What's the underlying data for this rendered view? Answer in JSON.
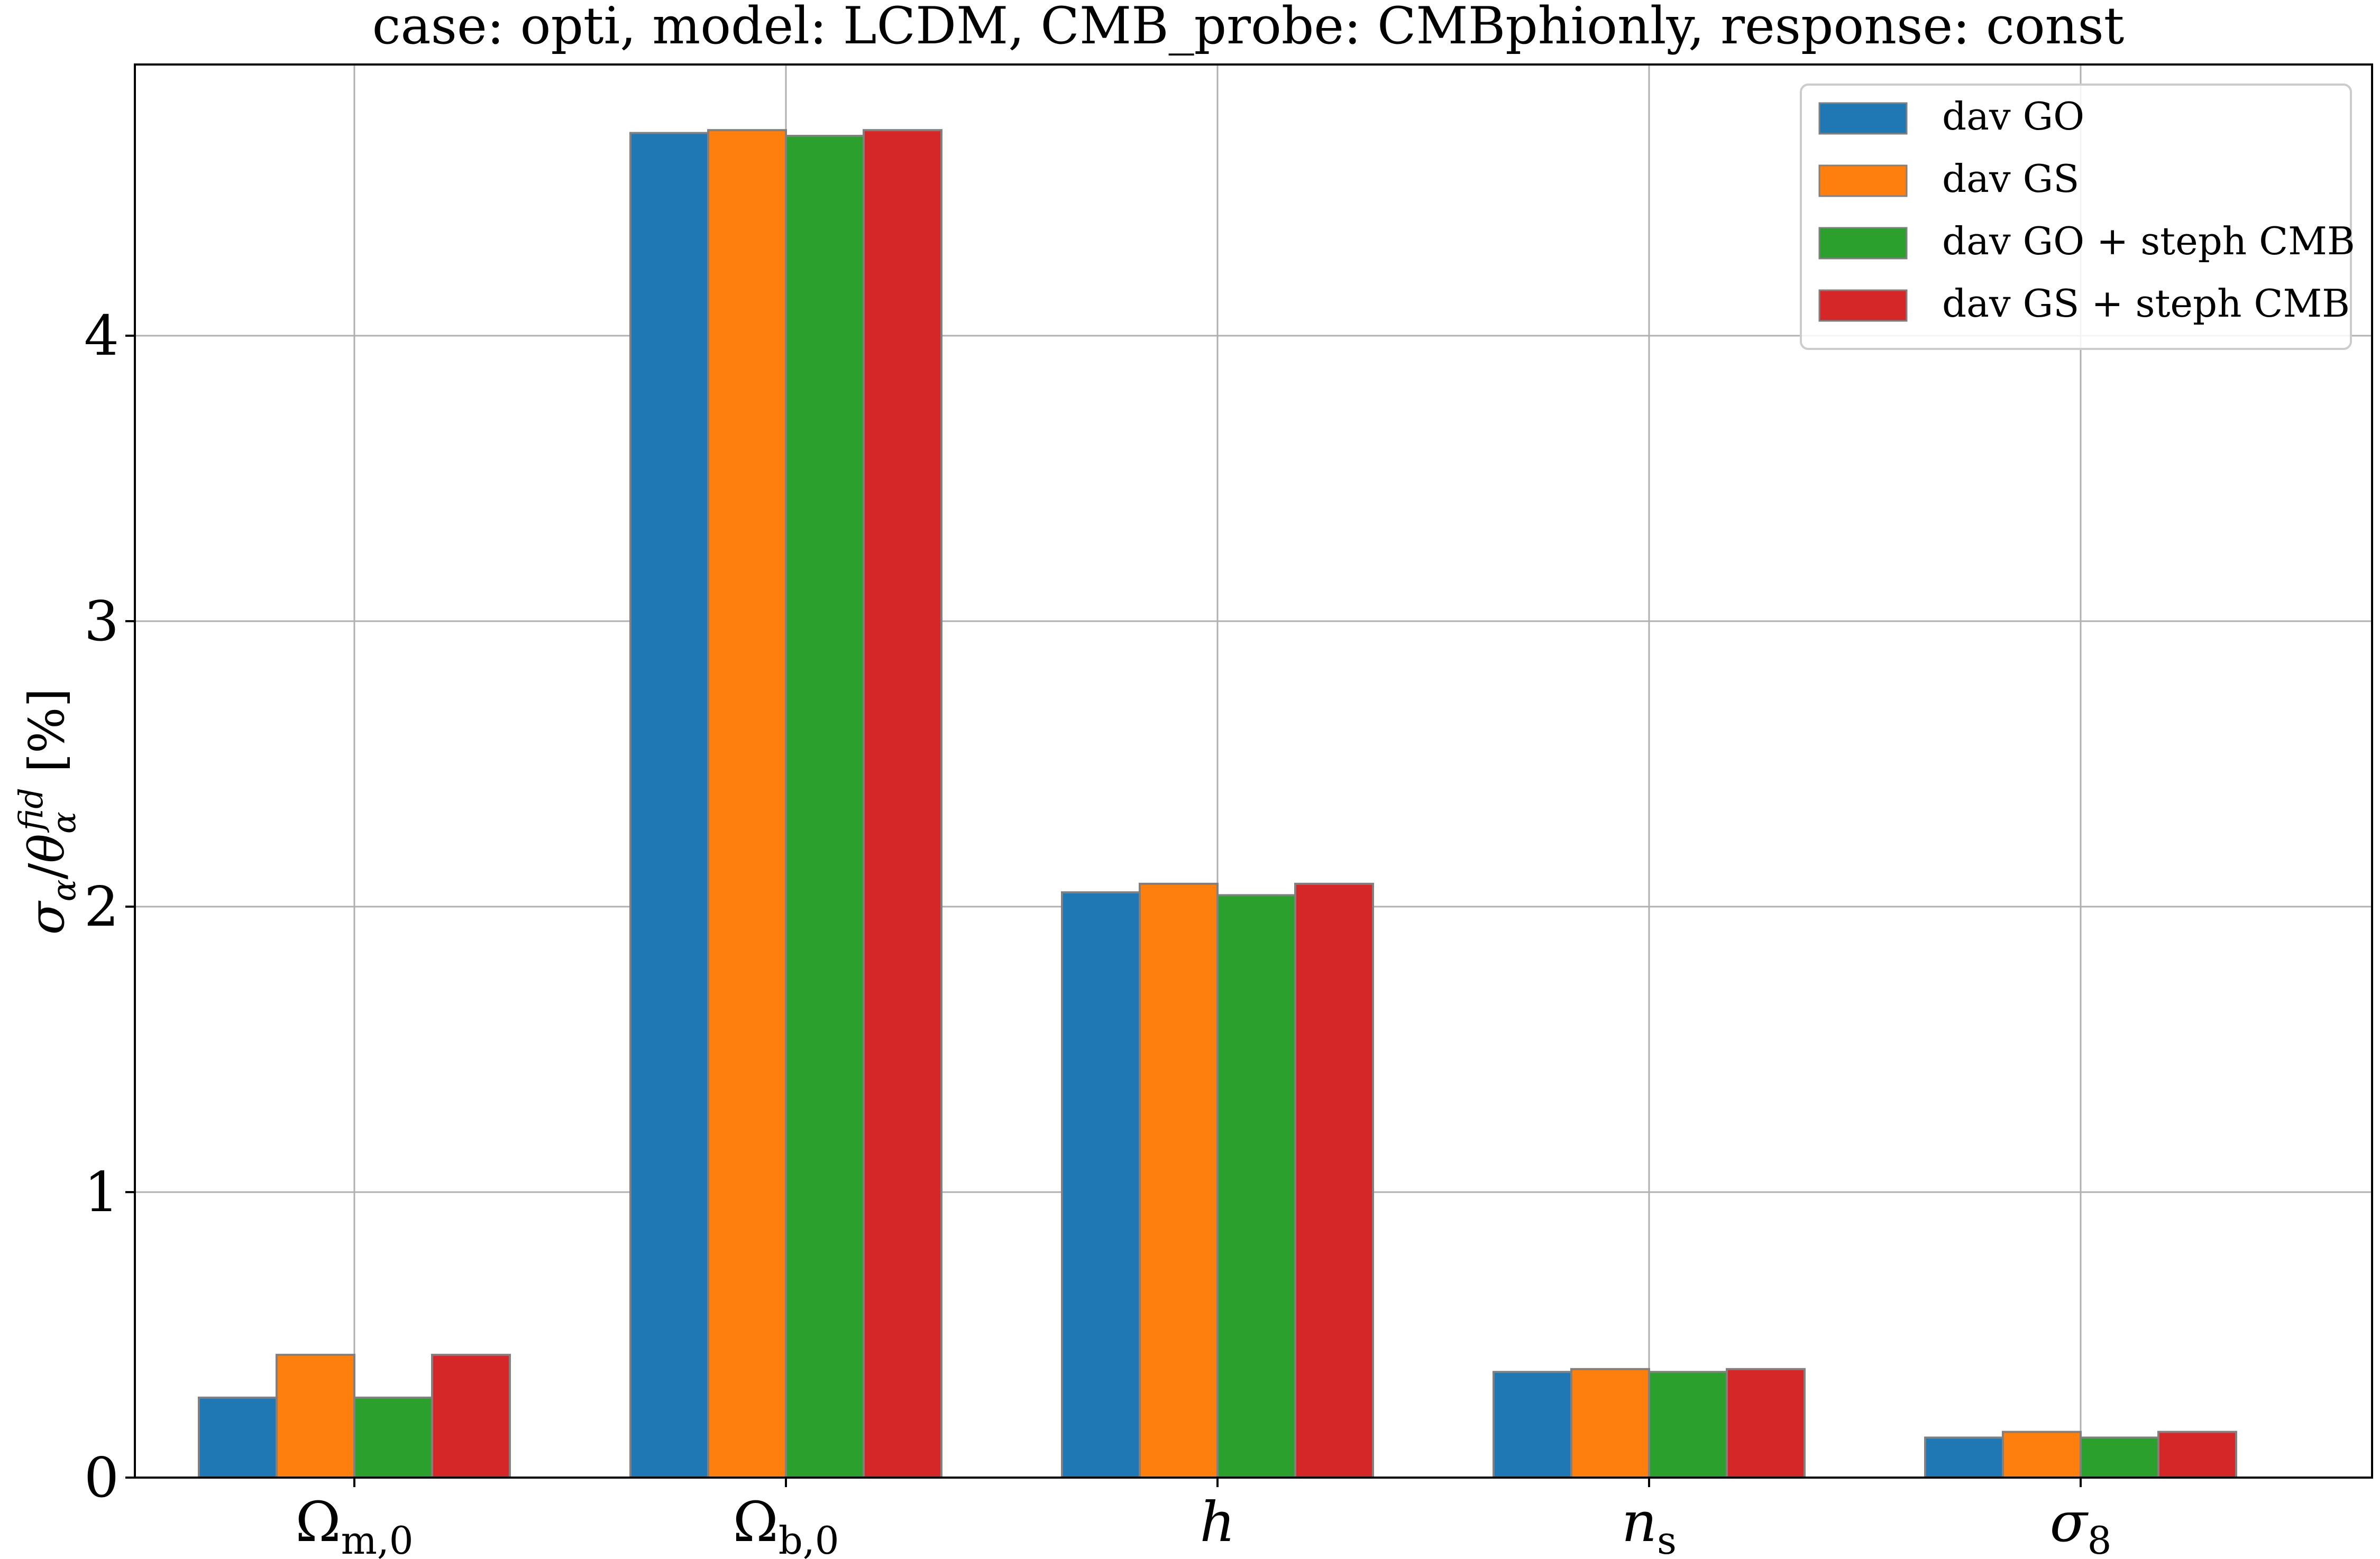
{
  "chart_data": {
    "type": "bar",
    "title": "case: opti, model: LCDM, CMB_probe: CMBphionly, response: const",
    "ylabel": "σα/θαfid [%]",
    "xlabel": "",
    "categories": [
      "Ωm,0",
      "Ωb,0",
      "h",
      "ns",
      "σ8"
    ],
    "ylim": [
      0,
      4.95
    ],
    "yticks": [
      0,
      1,
      2,
      3,
      4
    ],
    "ytick_labels": [
      "0",
      "1",
      "2",
      "3",
      "4"
    ],
    "grid": true,
    "legend_position": "top-right",
    "series": [
      {
        "name": "dav GO",
        "color": "#1f77b4",
        "values": [
          0.28,
          4.71,
          2.05,
          0.37,
          0.14
        ]
      },
      {
        "name": "dav GS",
        "color": "#ff7f0e",
        "values": [
          0.43,
          4.72,
          2.08,
          0.38,
          0.16
        ]
      },
      {
        "name": "dav GO + steph CMB",
        "color": "#2ca02c",
        "values": [
          0.28,
          4.7,
          2.04,
          0.37,
          0.14
        ]
      },
      {
        "name": "dav GS + steph CMB",
        "color": "#d62728",
        "values": [
          0.43,
          4.72,
          2.08,
          0.38,
          0.16
        ]
      }
    ]
  }
}
